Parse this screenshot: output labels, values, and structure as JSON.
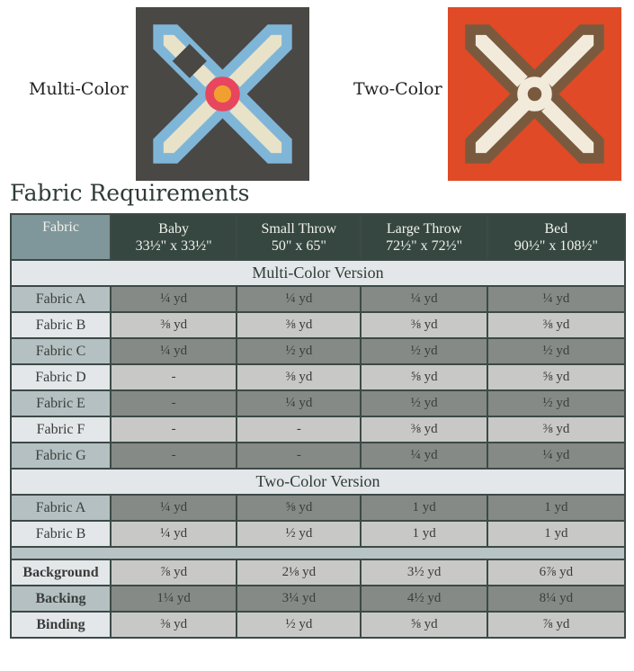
{
  "preview": {
    "multi_label": "Multi-Color",
    "two_label": "Two-Color",
    "multi_bg": "#4a4845",
    "two_bg": "#e04a26"
  },
  "title": "Fabric Requirements",
  "table": {
    "columns": [
      {
        "name": "Fabric",
        "size": ""
      },
      {
        "name": "Baby",
        "size": "33½\" x 33½\""
      },
      {
        "name": "Small Throw",
        "size": "50\" x 65\""
      },
      {
        "name": "Large Throw",
        "size": "72½\" x 72½\""
      },
      {
        "name": "Bed",
        "size": "90½\" x 108½\""
      }
    ],
    "sections": [
      {
        "title": "Multi-Color Version",
        "rows": [
          {
            "label": "Fabric A",
            "values": [
              "¼ yd",
              "¼ yd",
              "¼ yd",
              "¼ yd"
            ]
          },
          {
            "label": "Fabric B",
            "values": [
              "⅜ yd",
              "⅜ yd",
              "⅜ yd",
              "⅜ yd"
            ]
          },
          {
            "label": "Fabric C",
            "values": [
              "¼ yd",
              "½ yd",
              "½ yd",
              "½ yd"
            ]
          },
          {
            "label": "Fabric D",
            "values": [
              "-",
              "⅜ yd",
              "⅝ yd",
              "⅝ yd"
            ]
          },
          {
            "label": "Fabric E",
            "values": [
              "-",
              "¼ yd",
              "½ yd",
              "½ yd"
            ]
          },
          {
            "label": "Fabric F",
            "values": [
              "-",
              "-",
              "⅜ yd",
              "⅜ yd"
            ]
          },
          {
            "label": "Fabric G",
            "values": [
              "-",
              "-",
              "¼ yd",
              "¼ yd"
            ]
          }
        ]
      },
      {
        "title": "Two-Color Version",
        "rows": [
          {
            "label": "Fabric A",
            "values": [
              "¼ yd",
              "⅝ yd",
              "1 yd",
              "1 yd"
            ]
          },
          {
            "label": "Fabric B",
            "values": [
              "¼ yd",
              "½ yd",
              "1 yd",
              "1 yd"
            ]
          }
        ]
      },
      {
        "title": "",
        "rows": [
          {
            "label": "Background",
            "values": [
              "⅞ yd",
              "2⅛ yd",
              "3½ yd",
              "6⅞ yd"
            ]
          },
          {
            "label": "Backing",
            "values": [
              "1¼ yd",
              "3¼ yd",
              "4½ yd",
              "8¼ yd"
            ]
          },
          {
            "label": "Binding",
            "values": [
              "⅜ yd",
              "½ yd",
              "⅝ yd",
              "⅞ yd"
            ]
          }
        ]
      }
    ]
  }
}
